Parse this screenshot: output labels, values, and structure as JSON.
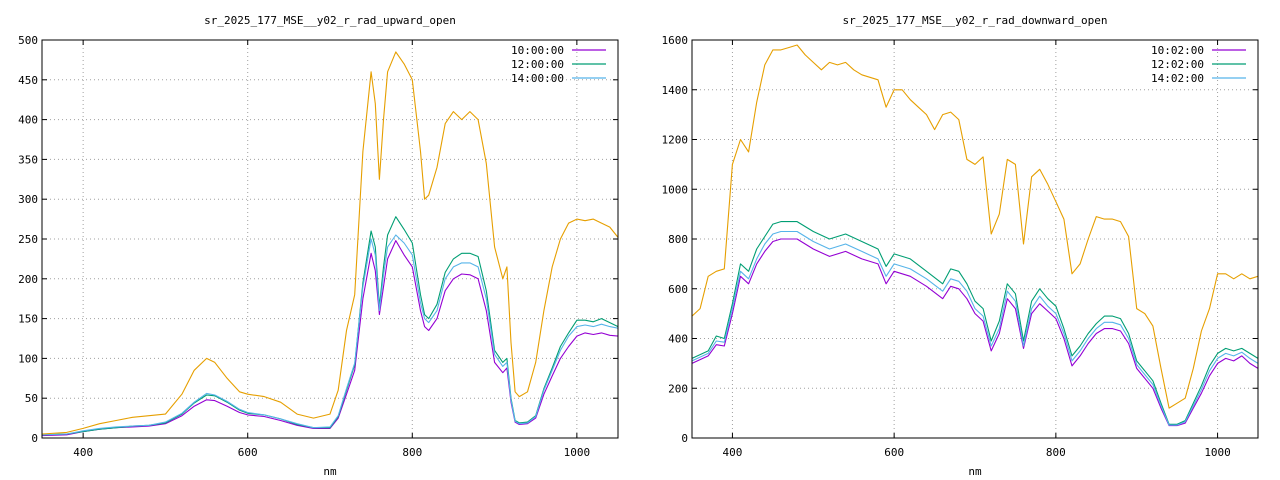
{
  "chart_data": [
    {
      "type": "line",
      "title": "sr_2025_177_MSE__y02_r_rad_upward_open",
      "xlabel": "nm",
      "ylabel": "",
      "xlim": [
        350,
        1050
      ],
      "ylim": [
        0,
        500
      ],
      "xticks": [
        400,
        600,
        800,
        1000
      ],
      "yticks": [
        0,
        50,
        100,
        150,
        200,
        250,
        300,
        350,
        400,
        450,
        500
      ],
      "grid": true,
      "legend_position": "top-right",
      "series": [
        {
          "name": "10:00:00",
          "color": "#9400d3",
          "x": [
            350,
            380,
            400,
            420,
            440,
            460,
            480,
            500,
            520,
            535,
            550,
            560,
            575,
            590,
            600,
            620,
            640,
            660,
            680,
            700,
            710,
            720,
            730,
            740,
            750,
            755,
            760,
            765,
            770,
            780,
            790,
            800,
            810,
            815,
            820,
            830,
            840,
            850,
            860,
            870,
            880,
            890,
            900,
            910,
            915,
            920,
            925,
            930,
            940,
            950,
            960,
            970,
            980,
            990,
            1000,
            1010,
            1020,
            1030,
            1040,
            1050
          ],
          "y": [
            3,
            4,
            8,
            11,
            13,
            14,
            15,
            18,
            28,
            40,
            48,
            47,
            40,
            32,
            29,
            27,
            22,
            16,
            12,
            12,
            25,
            55,
            85,
            175,
            232,
            210,
            155,
            190,
            225,
            248,
            230,
            215,
            160,
            140,
            135,
            150,
            185,
            200,
            206,
            205,
            200,
            160,
            95,
            82,
            88,
            45,
            20,
            17,
            18,
            25,
            55,
            78,
            100,
            115,
            128,
            132,
            130,
            132,
            129,
            128
          ]
        },
        {
          "name": "12:00:00",
          "color": "#009e73",
          "x": [
            350,
            380,
            400,
            420,
            440,
            460,
            480,
            500,
            520,
            535,
            550,
            560,
            575,
            590,
            600,
            620,
            640,
            660,
            680,
            700,
            710,
            720,
            730,
            740,
            750,
            755,
            760,
            765,
            770,
            780,
            790,
            800,
            810,
            815,
            820,
            830,
            840,
            850,
            860,
            870,
            880,
            890,
            900,
            910,
            915,
            920,
            925,
            930,
            940,
            950,
            960,
            970,
            980,
            990,
            1000,
            1010,
            1020,
            1030,
            1040,
            1050
          ],
          "y": [
            4,
            5,
            8,
            11,
            13,
            15,
            16,
            19,
            30,
            44,
            54,
            53,
            45,
            35,
            31,
            29,
            24,
            17,
            13,
            13,
            27,
            60,
            92,
            195,
            260,
            240,
            165,
            215,
            255,
            278,
            262,
            245,
            180,
            155,
            150,
            168,
            208,
            225,
            232,
            232,
            228,
            185,
            110,
            95,
            100,
            50,
            22,
            19,
            20,
            28,
            62,
            88,
            115,
            132,
            148,
            148,
            146,
            150,
            145,
            140
          ]
        },
        {
          "name": "14:00:00",
          "color": "#56b4e9",
          "x": [
            350,
            380,
            400,
            420,
            440,
            460,
            480,
            500,
            520,
            535,
            550,
            560,
            575,
            590,
            600,
            620,
            640,
            660,
            680,
            700,
            710,
            720,
            730,
            740,
            750,
            755,
            760,
            765,
            770,
            780,
            790,
            800,
            810,
            815,
            820,
            830,
            840,
            850,
            860,
            870,
            880,
            890,
            900,
            910,
            915,
            920,
            925,
            930,
            940,
            950,
            960,
            970,
            980,
            990,
            1000,
            1010,
            1020,
            1030,
            1040,
            1050
          ],
          "y": [
            4,
            5,
            9,
            12,
            14,
            15,
            16,
            20,
            31,
            45,
            56,
            54,
            46,
            36,
            32,
            29,
            24,
            18,
            13,
            14,
            28,
            62,
            94,
            190,
            250,
            230,
            160,
            205,
            240,
            255,
            245,
            230,
            170,
            150,
            145,
            160,
            200,
            215,
            220,
            220,
            215,
            175,
            105,
            90,
            95,
            48,
            21,
            18,
            19,
            27,
            60,
            85,
            110,
            128,
            140,
            142,
            140,
            143,
            140,
            138
          ]
        },
        {
          "name": "",
          "color": "#e69f00",
          "x": [
            350,
            380,
            400,
            420,
            440,
            460,
            480,
            500,
            520,
            535,
            550,
            560,
            575,
            590,
            600,
            620,
            640,
            660,
            680,
            700,
            710,
            720,
            730,
            740,
            750,
            755,
            760,
            765,
            770,
            780,
            790,
            800,
            810,
            815,
            820,
            830,
            840,
            850,
            860,
            870,
            880,
            890,
            900,
            910,
            915,
            920,
            925,
            930,
            940,
            950,
            960,
            970,
            980,
            990,
            1000,
            1010,
            1020,
            1030,
            1040,
            1050
          ],
          "y": [
            5,
            7,
            12,
            18,
            22,
            26,
            28,
            30,
            55,
            85,
            100,
            95,
            75,
            58,
            55,
            52,
            45,
            30,
            25,
            30,
            60,
            135,
            180,
            360,
            460,
            420,
            325,
            400,
            460,
            485,
            470,
            450,
            360,
            300,
            305,
            340,
            395,
            410,
            400,
            410,
            400,
            345,
            240,
            200,
            215,
            120,
            58,
            52,
            58,
            95,
            160,
            215,
            250,
            270,
            275,
            273,
            275,
            270,
            265,
            252
          ]
        }
      ]
    },
    {
      "type": "line",
      "title": "sr_2025_177_MSE__y02_r_rad_downward_open",
      "xlabel": "nm",
      "ylabel": "",
      "xlim": [
        350,
        1050
      ],
      "ylim": [
        0,
        1600
      ],
      "xticks": [
        400,
        600,
        800,
        1000
      ],
      "yticks": [
        0,
        200,
        400,
        600,
        800,
        1000,
        1200,
        1400,
        1600
      ],
      "grid": true,
      "legend_position": "top-right",
      "series": [
        {
          "name": "10:02:00",
          "color": "#9400d3",
          "x": [
            350,
            370,
            380,
            390,
            400,
            410,
            420,
            430,
            440,
            450,
            460,
            480,
            500,
            520,
            540,
            560,
            580,
            590,
            600,
            620,
            640,
            660,
            670,
            680,
            690,
            700,
            710,
            720,
            730,
            740,
            750,
            760,
            770,
            780,
            790,
            800,
            810,
            820,
            830,
            840,
            850,
            860,
            870,
            880,
            890,
            900,
            910,
            920,
            930,
            940,
            950,
            960,
            970,
            980,
            990,
            1000,
            1010,
            1020,
            1030,
            1040,
            1050
          ],
          "y": [
            300,
            330,
            375,
            370,
            500,
            650,
            620,
            700,
            750,
            790,
            800,
            800,
            760,
            730,
            750,
            720,
            700,
            620,
            670,
            650,
            610,
            560,
            610,
            600,
            560,
            500,
            470,
            350,
            420,
            560,
            520,
            360,
            500,
            540,
            510,
            480,
            400,
            290,
            330,
            380,
            420,
            440,
            440,
            430,
            380,
            280,
            240,
            200,
            120,
            50,
            50,
            60,
            120,
            180,
            250,
            300,
            320,
            310,
            330,
            300,
            280
          ]
        },
        {
          "name": "12:02:00",
          "color": "#009e73",
          "x": [
            350,
            370,
            380,
            390,
            400,
            410,
            420,
            430,
            440,
            450,
            460,
            480,
            500,
            520,
            540,
            560,
            580,
            590,
            600,
            620,
            640,
            660,
            670,
            680,
            690,
            700,
            710,
            720,
            730,
            740,
            750,
            760,
            770,
            780,
            790,
            800,
            810,
            820,
            830,
            840,
            850,
            860,
            870,
            880,
            890,
            900,
            910,
            920,
            930,
            940,
            950,
            960,
            970,
            980,
            990,
            1000,
            1010,
            1020,
            1030,
            1040,
            1050
          ],
          "y": [
            320,
            350,
            410,
            400,
            540,
            700,
            670,
            760,
            810,
            860,
            870,
            870,
            830,
            800,
            820,
            790,
            760,
            690,
            740,
            720,
            670,
            620,
            680,
            670,
            620,
            550,
            520,
            390,
            470,
            620,
            580,
            390,
            550,
            600,
            560,
            530,
            440,
            330,
            370,
            420,
            460,
            490,
            490,
            480,
            420,
            310,
            270,
            230,
            140,
            55,
            55,
            70,
            140,
            210,
            290,
            340,
            360,
            350,
            360,
            340,
            320
          ]
        },
        {
          "name": "14:02:00",
          "color": "#56b4e9",
          "x": [
            350,
            370,
            380,
            390,
            400,
            410,
            420,
            430,
            440,
            450,
            460,
            480,
            500,
            520,
            540,
            560,
            580,
            590,
            600,
            620,
            640,
            660,
            670,
            680,
            690,
            700,
            710,
            720,
            730,
            740,
            750,
            760,
            770,
            780,
            790,
            800,
            810,
            820,
            830,
            840,
            850,
            860,
            870,
            880,
            890,
            900,
            910,
            920,
            930,
            940,
            950,
            960,
            970,
            980,
            990,
            1000,
            1010,
            1020,
            1030,
            1040,
            1050
          ],
          "y": [
            310,
            340,
            390,
            385,
            520,
            670,
            640,
            720,
            780,
            820,
            830,
            830,
            790,
            760,
            780,
            750,
            720,
            650,
            700,
            680,
            640,
            590,
            640,
            630,
            590,
            520,
            490,
            370,
            440,
            590,
            550,
            370,
            520,
            570,
            530,
            500,
            420,
            310,
            350,
            400,
            440,
            465,
            465,
            455,
            400,
            295,
            255,
            215,
            130,
            52,
            52,
            65,
            130,
            195,
            270,
            320,
            340,
            330,
            345,
            320,
            300
          ]
        },
        {
          "name": "",
          "color": "#e69f00",
          "x": [
            350,
            360,
            370,
            380,
            390,
            400,
            410,
            420,
            430,
            440,
            450,
            460,
            470,
            480,
            490,
            500,
            510,
            520,
            530,
            540,
            550,
            560,
            570,
            580,
            590,
            600,
            610,
            620,
            630,
            640,
            650,
            660,
            670,
            680,
            690,
            700,
            710,
            720,
            730,
            740,
            750,
            760,
            770,
            780,
            790,
            800,
            810,
            820,
            830,
            840,
            850,
            860,
            870,
            880,
            890,
            900,
            910,
            920,
            930,
            940,
            950,
            960,
            970,
            980,
            990,
            1000,
            1010,
            1020,
            1030,
            1040,
            1050
          ],
          "y": [
            490,
            520,
            650,
            670,
            680,
            1100,
            1200,
            1150,
            1350,
            1500,
            1560,
            1560,
            1570,
            1580,
            1540,
            1510,
            1480,
            1510,
            1500,
            1510,
            1480,
            1460,
            1450,
            1440,
            1330,
            1400,
            1400,
            1360,
            1330,
            1300,
            1240,
            1300,
            1310,
            1280,
            1120,
            1100,
            1130,
            820,
            900,
            1120,
            1100,
            780,
            1050,
            1080,
            1020,
            950,
            880,
            660,
            700,
            800,
            890,
            880,
            880,
            870,
            810,
            520,
            500,
            450,
            280,
            120,
            140,
            160,
            280,
            430,
            520,
            660,
            660,
            640,
            660,
            640,
            650
          ]
        }
      ]
    }
  ]
}
